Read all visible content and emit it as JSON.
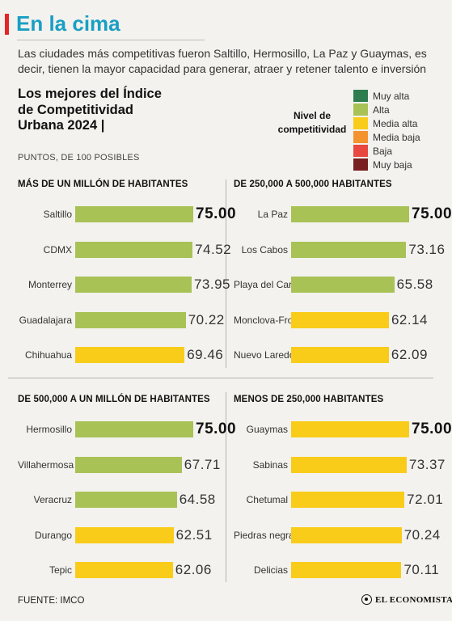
{
  "header": {
    "title": "En la cima",
    "subtitle": "Las ciudades más competitivas fueron Saltillo, Hermosillo, La Paz y Guaymas, es decir, tienen la mayor capacidad para generar, atraer y retener talento e inversión",
    "chart_heading": "Los mejores del Índice de Competitividad Urbana 2024 |",
    "units": "PUNTOS, DE 100 POSIBLES"
  },
  "legend": {
    "title": "Nivel de competitividad",
    "items": [
      {
        "label": "Muy alta",
        "color": "#2e7d4f"
      },
      {
        "label": "Alta",
        "color": "#a8c256"
      },
      {
        "label": "Media alta",
        "color": "#f9cc1a"
      },
      {
        "label": "Media baja",
        "color": "#f4922e"
      },
      {
        "label": "Baja",
        "color": "#e8483f"
      },
      {
        "label": "Muy baja",
        "color": "#7a1f20"
      }
    ]
  },
  "colors": {
    "alta": "#a8c256",
    "media_alta": "#f9cc1a",
    "title": "#1a9fc4",
    "accent": "#e5252a"
  },
  "chart_data": [
    {
      "type": "bar",
      "title": "MÁS DE UN MILLÓN DE HABITANTES",
      "categories": [
        "Saltillo",
        "CDMX",
        "Monterrey",
        "Guadalajara",
        "Chihuahua"
      ],
      "values": [
        75.0,
        74.52,
        73.95,
        70.22,
        69.46
      ],
      "value_labels": [
        "75.00",
        "74.52",
        "73.95",
        "70.22",
        "69.46"
      ],
      "levels": [
        "Alta",
        "Alta",
        "Alta",
        "Alta",
        "Media alta"
      ]
    },
    {
      "type": "bar",
      "title": "DE 250,000 A 500,000 HABITANTES",
      "categories": [
        "La Paz",
        "Los Cabos",
        "Playa del Carmen",
        "Monclova-Frontera",
        "Nuevo Laredo"
      ],
      "values": [
        75.0,
        73.16,
        65.58,
        62.14,
        62.09
      ],
      "value_labels": [
        "75.00",
        "73.16",
        "65.58",
        "62.14",
        "62.09"
      ],
      "levels": [
        "Alta",
        "Alta",
        "Alta",
        "Media alta",
        "Media alta"
      ]
    },
    {
      "type": "bar",
      "title": "DE 500,000 A UN MILLÓN DE HABITANTES",
      "categories": [
        "Hermosillo",
        "Villahermosa",
        "Veracruz",
        "Durango",
        "Tepic"
      ],
      "values": [
        75.0,
        67.71,
        64.58,
        62.51,
        62.06
      ],
      "value_labels": [
        "75.00",
        "67.71",
        "64.58",
        "62.51",
        "62.06"
      ],
      "levels": [
        "Alta",
        "Alta",
        "Alta",
        "Media alta",
        "Media alta"
      ]
    },
    {
      "type": "bar",
      "title": "MENOS DE 250,000 HABITANTES",
      "categories": [
        "Guaymas",
        "Sabinas",
        "Chetumal",
        "Piedras negras",
        "Delicias"
      ],
      "values": [
        75.0,
        73.37,
        72.01,
        70.24,
        70.11
      ],
      "value_labels": [
        "75.00",
        "73.37",
        "72.01",
        "70.24",
        "70.11"
      ],
      "levels": [
        "Media alta",
        "Media alta",
        "Media alta",
        "Media alta",
        "Media alta"
      ]
    }
  ],
  "footer": {
    "source": "FUENTE: IMCO",
    "brand": "EL ECONOMISTA"
  }
}
